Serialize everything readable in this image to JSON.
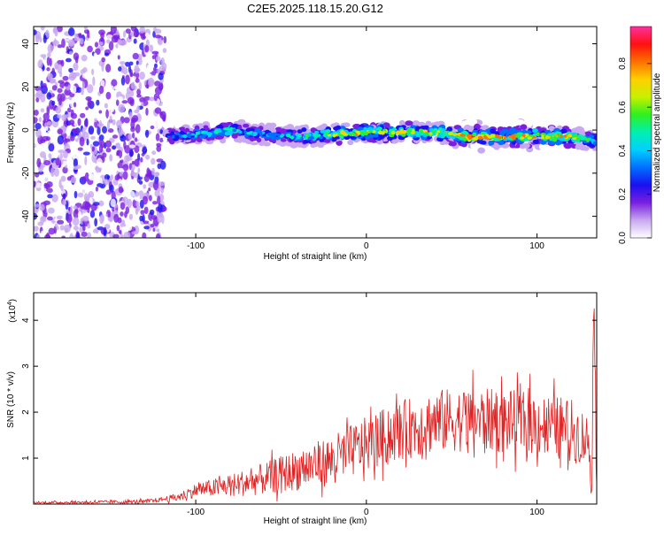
{
  "title": "C2E5.2025.118.15.20.G12",
  "chart_data": [
    {
      "type": "heatmap",
      "xlabel": "Height of straight line (km)",
      "ylabel": "Frequency (Hz)",
      "xlim": [
        -195,
        135
      ],
      "ylim": [
        -50,
        48
      ],
      "x_ticks": [
        -100,
        0,
        100
      ],
      "y_ticks": [
        -40,
        -20,
        0,
        20,
        40
      ],
      "colorbar": {
        "label": "Normalized spectral amplitude",
        "range": [
          0.0,
          0.97
        ],
        "ticks": [
          0.0,
          0.2,
          0.4,
          0.6,
          0.8
        ],
        "colors": [
          "#ffffff",
          "#c8a8f0",
          "#7a1fe0",
          "#1a10f0",
          "#0070ff",
          "#00d0ff",
          "#00f0b0",
          "#30f020",
          "#c8f000",
          "#ffd000",
          "#ff7000",
          "#ff1010",
          "#ff30a0"
        ]
      },
      "noise_region": {
        "x_range": [
          -195,
          -118
        ],
        "description_level": 0.2
      },
      "ridge": {
        "x": [
          -118,
          -100,
          -80,
          -60,
          -40,
          -20,
          0,
          20,
          40,
          60,
          80,
          100,
          120,
          135
        ],
        "freq": [
          -3,
          -2,
          0,
          -2,
          -3,
          -2,
          -1,
          -1,
          -1,
          -3,
          -3,
          -3,
          -3,
          -5
        ],
        "amplitude": [
          0.35,
          0.5,
          0.55,
          0.45,
          0.55,
          0.7,
          0.8,
          0.75,
          0.7,
          0.85,
          0.85,
          0.85,
          0.8,
          0.5
        ]
      }
    },
    {
      "type": "line",
      "xlabel": "Height of straight line (km)",
      "ylabel": "SNR (10 * v/v)",
      "y_multiplier": "(x10",
      "y_multiplier_exp": "4",
      "y_multiplier_close": ")",
      "xlim": [
        -195,
        135
      ],
      "ylim": [
        0,
        4.6
      ],
      "x_ticks": [
        -100,
        0,
        100
      ],
      "y_ticks": [
        1,
        2,
        3,
        4
      ],
      "color": "#e02020",
      "envelope": {
        "x": [
          -195,
          -130,
          -110,
          -100,
          -90,
          -80,
          -60,
          -40,
          -20,
          0,
          20,
          40,
          60,
          80,
          100,
          120,
          130,
          132,
          133.5,
          135
        ],
        "y": [
          0.03,
          0.05,
          0.15,
          0.3,
          0.35,
          0.4,
          0.55,
          0.75,
          0.95,
          1.3,
          1.6,
          1.8,
          1.85,
          1.8,
          1.75,
          1.6,
          1.4,
          0.6,
          4.6,
          0.5
        ]
      },
      "spread": {
        "x": [
          -195,
          -120,
          -100,
          -60,
          -20,
          0,
          40,
          80,
          120,
          135
        ],
        "y": [
          0.02,
          0.05,
          0.15,
          0.35,
          0.55,
          0.6,
          0.7,
          0.7,
          0.7,
          0.5
        ]
      }
    }
  ]
}
